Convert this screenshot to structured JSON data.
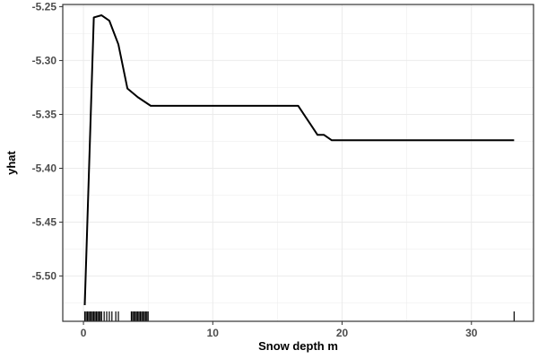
{
  "chart_data": {
    "type": "line",
    "title": "",
    "xlabel": "Snow depth m",
    "ylabel": "yhat",
    "xlim": [
      -1.6,
      34.8
    ],
    "ylim": [
      -5.542,
      -5.248
    ],
    "x_ticks": [
      0,
      10,
      20,
      30
    ],
    "y_ticks": [
      -5.25,
      -5.3,
      -5.35,
      -5.4,
      -5.45,
      -5.5
    ],
    "x_tick_labels": [
      "0",
      "10",
      "20",
      "30"
    ],
    "y_tick_labels": [
      "-5.25",
      "-5.30",
      "-5.35",
      "-5.40",
      "-5.45",
      "-5.50"
    ],
    "grid": true,
    "legend": "none",
    "series": [
      {
        "color": "#000000",
        "points": [
          [
            0.1,
            -5.527
          ],
          [
            0.8,
            -5.26
          ],
          [
            1.4,
            -5.258
          ],
          [
            2.0,
            -5.263
          ],
          [
            2.7,
            -5.285
          ],
          [
            3.4,
            -5.326
          ],
          [
            4.2,
            -5.334
          ],
          [
            5.2,
            -5.342
          ],
          [
            10.0,
            -5.342
          ],
          [
            15.0,
            -5.342
          ],
          [
            16.6,
            -5.342
          ],
          [
            17.6,
            -5.36
          ],
          [
            18.1,
            -5.369
          ],
          [
            18.6,
            -5.369
          ],
          [
            19.2,
            -5.374
          ],
          [
            25.0,
            -5.374
          ],
          [
            33.3,
            -5.374
          ]
        ]
      }
    ],
    "rug_x": [
      0.1,
      0.2,
      0.3,
      0.4,
      0.5,
      0.6,
      0.7,
      0.8,
      0.9,
      1.0,
      1.1,
      1.2,
      1.3,
      1.4,
      1.6,
      1.8,
      2.0,
      2.2,
      2.5,
      2.7,
      3.7,
      3.8,
      3.9,
      4.0,
      4.1,
      4.2,
      4.3,
      4.4,
      4.5,
      4.6,
      4.7,
      4.8,
      4.9,
      5.0,
      33.3
    ],
    "colors": {
      "line": "#000000",
      "grid": "#ebebeb",
      "panel_border": "#333333"
    }
  }
}
